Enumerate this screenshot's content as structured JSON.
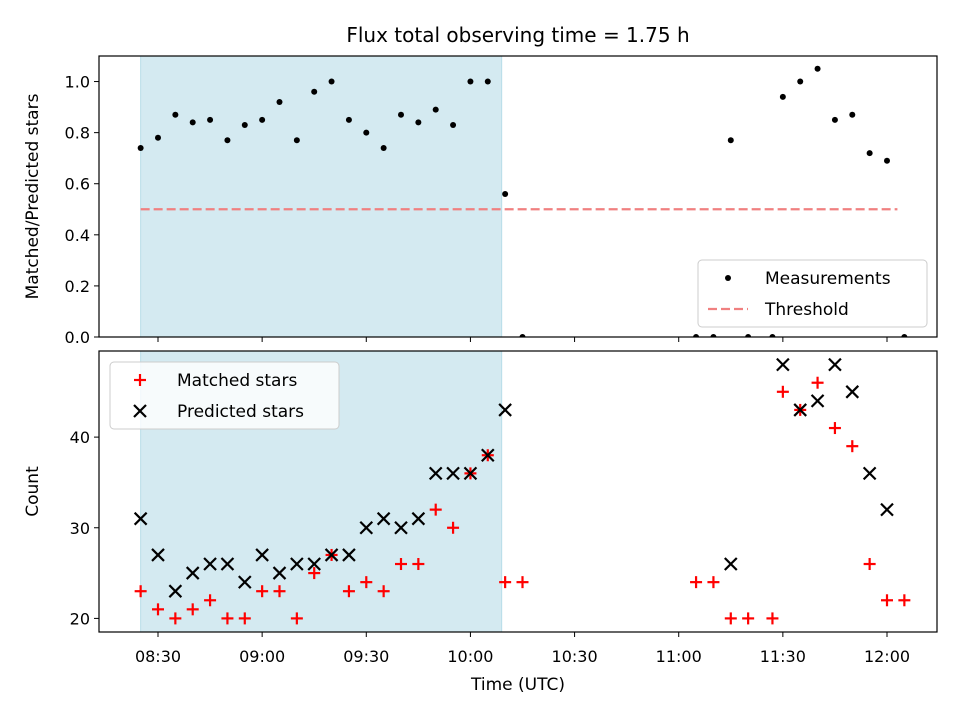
{
  "chart_data": {
    "type": "scatter",
    "title": "Flux total observing time = 1.75 h",
    "xlabel": "Time (UTC)",
    "x_ticks": [
      "08:30",
      "09:00",
      "09:30",
      "10:00",
      "10:30",
      "11:00",
      "11:30",
      "12:00"
    ],
    "shaded_interval": [
      "08:25",
      "10:09"
    ],
    "shade_color": "#d4eaf1",
    "panels": [
      {
        "ylabel": "Matched/Predicted stars",
        "ylim": [
          0,
          1.1
        ],
        "yticks": [
          "0.0",
          "0.2",
          "0.4",
          "0.6",
          "0.8",
          "1.0"
        ],
        "legend_position": "lower-right",
        "series": [
          {
            "name": "Measurements",
            "marker": "dot",
            "color": "#000000",
            "x": [
              "08:25",
              "08:30",
              "08:35",
              "08:40",
              "08:45",
              "08:50",
              "08:55",
              "09:00",
              "09:05",
              "09:10",
              "09:15",
              "09:20",
              "09:25",
              "09:30",
              "09:35",
              "09:40",
              "09:45",
              "09:50",
              "09:55",
              "10:00",
              "10:05",
              "10:10",
              "10:15",
              "11:05",
              "11:10",
              "11:15",
              "11:20",
              "11:27",
              "11:30",
              "11:35",
              "11:40",
              "11:45",
              "11:50",
              "11:55",
              "12:00",
              "12:05"
            ],
            "y": [
              0.74,
              0.78,
              0.87,
              0.84,
              0.85,
              0.77,
              0.83,
              0.85,
              0.92,
              0.77,
              0.96,
              1.0,
              0.85,
              0.8,
              0.74,
              0.87,
              0.84,
              0.89,
              0.83,
              1.0,
              1.0,
              0.56,
              0.0,
              0.0,
              0.0,
              0.77,
              0.0,
              0.0,
              0.94,
              1.0,
              1.05,
              0.85,
              0.87,
              0.72,
              0.69,
              0.0
            ]
          },
          {
            "name": "Threshold",
            "marker": "dashed-line",
            "color": "#f08080",
            "x": [
              "08:25",
              "12:03"
            ],
            "y": [
              0.5,
              0.5
            ]
          }
        ]
      },
      {
        "ylabel": "Count",
        "ylim": [
          18.5,
          49.5
        ],
        "yticks": [
          "20",
          "30",
          "40"
        ],
        "legend_position": "top-left",
        "series": [
          {
            "name": "Matched stars",
            "marker": "plus",
            "color": "#ff0000",
            "x": [
              "08:25",
              "08:30",
              "08:35",
              "08:40",
              "08:45",
              "08:50",
              "08:55",
              "09:00",
              "09:05",
              "09:10",
              "09:15",
              "09:20",
              "09:25",
              "09:30",
              "09:35",
              "09:40",
              "09:45",
              "09:50",
              "09:55",
              "10:00",
              "10:05",
              "10:10",
              "10:15",
              "11:05",
              "11:10",
              "11:15",
              "11:20",
              "11:27",
              "11:30",
              "11:35",
              "11:40",
              "11:45",
              "11:50",
              "11:55",
              "12:00",
              "12:05"
            ],
            "y": [
              23,
              21,
              20,
              21,
              22,
              20,
              20,
              23,
              23,
              20,
              25,
              27,
              23,
              24,
              23,
              26,
              26,
              32,
              30,
              36,
              38,
              24,
              24,
              24,
              24,
              20,
              20,
              20,
              45,
              43,
              46,
              41,
              39,
              26,
              22,
              22
            ]
          },
          {
            "name": "Predicted stars",
            "marker": "x",
            "color": "#000000",
            "x": [
              "08:25",
              "08:30",
              "08:35",
              "08:40",
              "08:45",
              "08:50",
              "08:55",
              "09:00",
              "09:05",
              "09:10",
              "09:15",
              "09:20",
              "09:25",
              "09:30",
              "09:35",
              "09:40",
              "09:45",
              "09:50",
              "09:55",
              "10:00",
              "10:05",
              "10:10",
              "11:15",
              "11:30",
              "11:35",
              "11:40",
              "11:45",
              "11:50",
              "11:55",
              "12:00"
            ],
            "y": [
              31,
              27,
              23,
              25,
              26,
              26,
              24,
              27,
              25,
              26,
              26,
              27,
              27,
              30,
              31,
              30,
              31,
              36,
              36,
              36,
              38,
              43,
              26,
              48,
              43,
              44,
              48,
              45,
              36,
              32
            ]
          }
        ]
      }
    ]
  }
}
